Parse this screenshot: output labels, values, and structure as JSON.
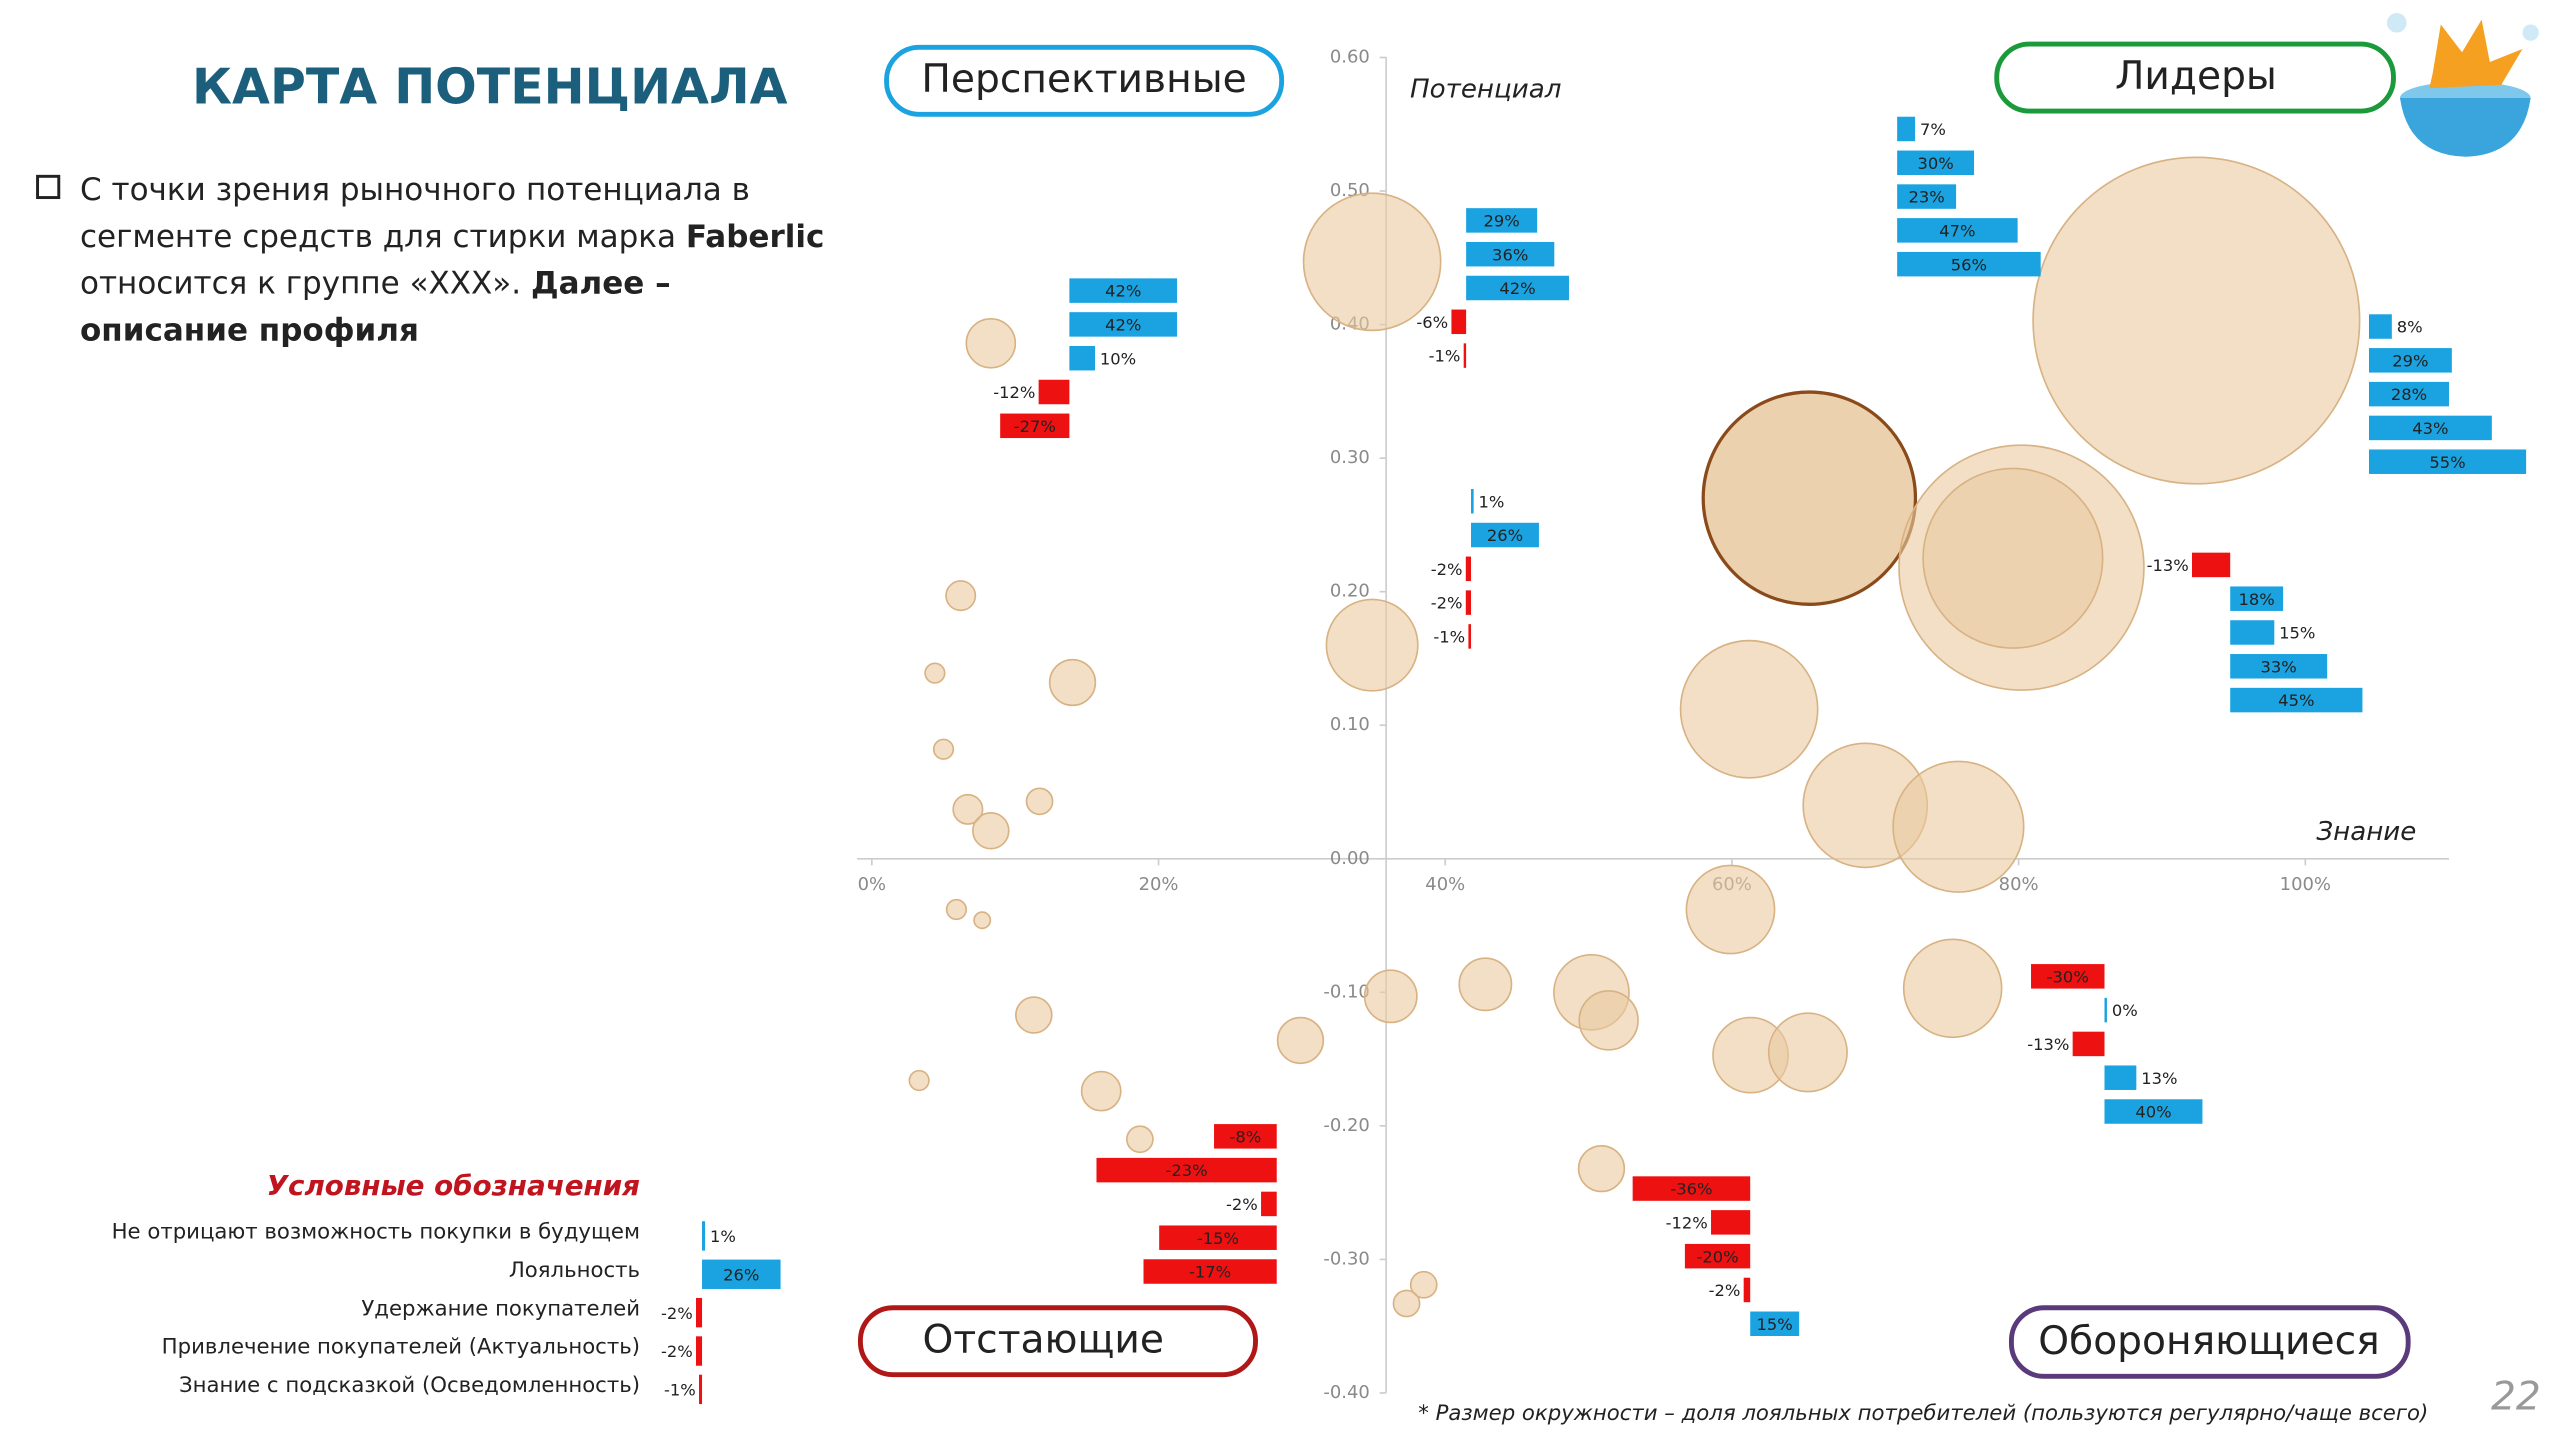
{
  "title": "КАРТА ПОТЕНЦИАЛА",
  "bullet": {
    "lines": [
      [
        {
          "text": "С точки зрения рыночного потенциала в",
          "bold": false
        }
      ],
      [
        {
          "text": "сегменте средств для стирки марка ",
          "bold": false
        },
        {
          "text": "Faberlic",
          "bold": true
        }
      ],
      [
        {
          "text": "относится к группе «ХХХ».  ",
          "bold": false
        },
        {
          "text": "Далее –",
          "bold": true
        }
      ],
      [
        {
          "text": "описание профиля",
          "bold": true
        }
      ]
    ]
  },
  "quadrants": [
    "Перспективные",
    "Лидеры",
    "Отстающие",
    "Обороняющиеся"
  ],
  "footnote": "* Размер окружности – доля лояльных потребителей (пользуются регулярно/чаще всего)",
  "page_number": "22",
  "chart_data": {
    "type": "bubble",
    "x_label": "Знание",
    "y_label": "Потенциал",
    "xlim": [
      0,
      110
    ],
    "ylim": [
      -0.4,
      0.6
    ],
    "xticks": [
      {
        "value": 0,
        "label": "0%"
      },
      {
        "value": 20,
        "label": "20%"
      },
      {
        "value": 40,
        "label": "40%"
      },
      {
        "value": 60,
        "label": "60%"
      },
      {
        "value": 80,
        "label": "80%"
      },
      {
        "value": 100,
        "label": "100%"
      }
    ],
    "yticks": [
      {
        "value": 0.6,
        "label": "0.60"
      },
      {
        "value": 0.5,
        "label": "0.50"
      },
      {
        "value": 0.4,
        "label": "0.40"
      },
      {
        "value": 0.3,
        "label": "0.30"
      },
      {
        "value": 0.2,
        "label": "0.20"
      },
      {
        "value": 0.1,
        "label": "0.10"
      },
      {
        "value": 0,
        "label": "0.00"
      },
      {
        "value": -0.1,
        "label": "-0.10"
      },
      {
        "value": -0.2,
        "label": "-0.20"
      },
      {
        "value": -0.3,
        "label": "-0.30"
      },
      {
        "value": -0.4,
        "label": "-0.40"
      }
    ],
    "series": [
      {
        "color": "#e9c9a0",
        "edgecolor": "#d8b283",
        "x": [
          34.9,
          8.3,
          92.4,
          65.4,
          80.2,
          79.6,
          34.9,
          61.2,
          69.3,
          75.8,
          6.2,
          4.4,
          14.0,
          5.0,
          6.7,
          8.3,
          11.7,
          59.9,
          5.9,
          7.7,
          36.2,
          42.8,
          50.2,
          51.4,
          75.4,
          11.3,
          29.9,
          61.3,
          65.3,
          16.0,
          3.3,
          18.7,
          50.9,
          38.5,
          37.3
        ],
        "values": [
          0.447,
          0.386,
          0.403,
          0.27,
          0.218,
          0.225,
          0.16,
          0.112,
          0.04,
          0.024,
          0.197,
          0.139,
          0.132,
          0.082,
          0.037,
          0.021,
          0.043,
          -0.038,
          -0.038,
          -0.046,
          -0.103,
          -0.094,
          -0.1,
          -0.121,
          -0.097,
          -0.117,
          -0.136,
          -0.147,
          -0.145,
          -0.174,
          -0.166,
          -0.21,
          -0.232,
          -0.319,
          -0.333
        ],
        "sizes": [
          42,
          15,
          100,
          65,
          75,
          55,
          28,
          42,
          38,
          40,
          9,
          6,
          14,
          6,
          9,
          11,
          8,
          27,
          6,
          5,
          16,
          16,
          23,
          18,
          30,
          11,
          14,
          23,
          24,
          12,
          6,
          8,
          14,
          8,
          8
        ]
      }
    ],
    "highlight": {
      "index": 3,
      "edgecolor": "#8b4a1a"
    },
    "positive_color": "#1aa3e0",
    "negative_color": "#ee1111",
    "bar_groups": [
      {
        "values": [
          42,
          42,
          10,
          -12,
          -27
        ],
        "value_labels": [
          "42%",
          "42%",
          "10%",
          "-12%",
          "-27%"
        ]
      },
      {
        "values": [
          29,
          36,
          42,
          -6,
          -1
        ],
        "value_labels": [
          "29%",
          "36%",
          "42%",
          "-6%",
          "-1%"
        ]
      },
      {
        "values": [
          7,
          30,
          23,
          47,
          56
        ],
        "value_labels": [
          "7%",
          "30%",
          "23%",
          "47%",
          "56%"
        ]
      },
      {
        "values": [
          8,
          29,
          28,
          43,
          55
        ],
        "value_labels": [
          "8%",
          "29%",
          "28%",
          "43%",
          "55%"
        ]
      },
      {
        "values": [
          1,
          26,
          -2,
          -2,
          -1
        ],
        "value_labels": [
          "1%",
          "26%",
          "-2%",
          "-2%",
          "-1%"
        ]
      },
      {
        "values": [
          -13,
          18,
          15,
          33,
          45
        ],
        "value_labels": [
          "-13%",
          "18%",
          "15%",
          "33%",
          "45%"
        ]
      },
      {
        "values": [
          -30,
          0,
          -13,
          13,
          40
        ],
        "value_labels": [
          "-30%",
          "0%",
          "-13%",
          "13%",
          "40%"
        ]
      },
      {
        "values": [
          -8,
          -23,
          -2,
          -15,
          -17
        ],
        "value_labels": [
          "-8%",
          "-23%",
          "-2%",
          "-15%",
          "-17%"
        ]
      },
      {
        "values": [
          -36,
          -12,
          -20,
          -2,
          15
        ],
        "value_labels": [
          "-36%",
          "-12%",
          "-20%",
          "-2%",
          "15%"
        ]
      }
    ],
    "bar_legend": {
      "title": "Условные обозначения",
      "labels": [
        "Не отрицают возможность покупки в будущем",
        "Лояльность",
        "Удержание покупателей",
        "Привлечение покупателей (Актуальность)",
        "Знание с подсказкой (Осведомленность)"
      ],
      "values": [
        1,
        26,
        -2,
        -2,
        -1
      ],
      "value_labels": [
        "1%",
        "26%",
        "-2%",
        "-2%",
        "-1%"
      ]
    }
  }
}
